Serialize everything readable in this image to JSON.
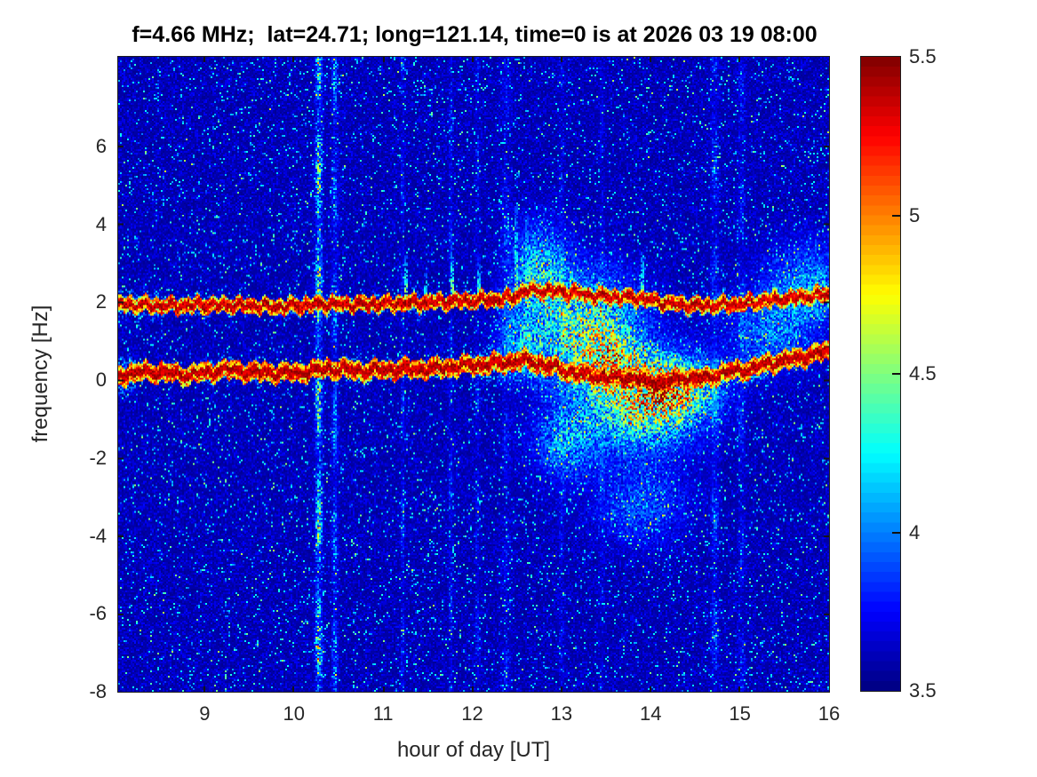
{
  "page": {
    "background": "#ffffff"
  },
  "chart_data": {
    "type": "heatmap",
    "subtype": "spectrogram",
    "title": "f=4.66 MHz;  lat=24.71; long=121.14, time=0 is at 2026 03 19 08:00",
    "xlabel": "hour of day [UT]",
    "ylabel": "frequency [Hz]",
    "xlim": [
      8.03,
      16.0
    ],
    "ylim": [
      -8,
      8.3
    ],
    "clim": [
      3.5,
      5.5
    ],
    "xticks": [
      9,
      10,
      11,
      12,
      13,
      14,
      15,
      16
    ],
    "yticks": [
      6,
      4,
      2,
      0,
      -2,
      -4,
      -6,
      -8
    ],
    "colorbar_ticks": [
      5.5,
      5,
      4.5,
      4,
      3.5
    ],
    "colormap": "jet",
    "grid": false,
    "legend": "none",
    "colors": {
      "background_low": "#000087",
      "peak_high": "#800000",
      "axis_text": "#262626",
      "title_text": "#000000",
      "axis_line": "#1c1c1c"
    },
    "features": {
      "noise": {
        "seed": 1337,
        "base": 0.06,
        "var": 0.2,
        "speckle_prob": 0.055,
        "speckle_min": 0.28,
        "speckle_var": 0.4,
        "bright_prob": 0.006,
        "bright_boost": 0.72
      },
      "upper_line": {
        "points": [
          [
            8.03,
            1.95
          ],
          [
            8.6,
            1.9
          ],
          [
            9.2,
            1.93
          ],
          [
            9.8,
            1.88
          ],
          [
            10.4,
            1.95
          ],
          [
            11.0,
            1.95
          ],
          [
            11.6,
            2.0
          ],
          [
            12.1,
            2.05
          ],
          [
            12.45,
            2.1
          ],
          [
            12.6,
            2.3
          ],
          [
            13.0,
            2.27
          ],
          [
            13.4,
            2.15
          ],
          [
            13.8,
            2.12
          ],
          [
            14.2,
            1.97
          ],
          [
            14.6,
            1.9
          ],
          [
            15.0,
            1.95
          ],
          [
            15.3,
            2.05
          ],
          [
            15.6,
            2.1
          ],
          [
            16.0,
            2.2
          ]
        ],
        "core_w": 0.09,
        "mid_w": 0.2,
        "halo_w": 0.33
      },
      "lower_line": {
        "points": [
          [
            8.03,
            0.13
          ],
          [
            8.4,
            0.22
          ],
          [
            8.8,
            0.13
          ],
          [
            9.2,
            0.26
          ],
          [
            9.6,
            0.2
          ],
          [
            10.0,
            0.18
          ],
          [
            10.4,
            0.3
          ],
          [
            10.8,
            0.23
          ],
          [
            11.2,
            0.28
          ],
          [
            11.6,
            0.3
          ],
          [
            12.0,
            0.38
          ],
          [
            12.3,
            0.42
          ],
          [
            12.55,
            0.52
          ],
          [
            12.75,
            0.42
          ],
          [
            12.95,
            0.3
          ],
          [
            13.15,
            0.18
          ],
          [
            13.35,
            0.12
          ],
          [
            13.55,
            0.05
          ],
          [
            13.75,
            0.1
          ],
          [
            13.95,
            -0.02
          ],
          [
            14.15,
            -0.08
          ],
          [
            14.35,
            0.08
          ],
          [
            14.55,
            0.02
          ],
          [
            14.75,
            0.14
          ],
          [
            14.95,
            0.24
          ],
          [
            15.15,
            0.3
          ],
          [
            15.35,
            0.45
          ],
          [
            15.55,
            0.52
          ],
          [
            15.75,
            0.62
          ],
          [
            16.0,
            0.75
          ]
        ],
        "core_w": 0.11,
        "mid_w": 0.24,
        "halo_w": 0.36
      },
      "stripes": [
        {
          "h": 10.28,
          "w": 0.035,
          "amp": 0.85
        },
        {
          "h": 10.46,
          "w": 0.03,
          "amp": 0.42
        },
        {
          "h": 11.22,
          "w": 0.02,
          "amp": 0.2
        },
        {
          "h": 11.76,
          "w": 0.02,
          "amp": 0.26
        },
        {
          "h": 12.06,
          "w": 0.025,
          "amp": 0.2
        },
        {
          "h": 12.38,
          "w": 0.05,
          "amp": 0.16
        },
        {
          "h": 13.0,
          "w": 0.03,
          "amp": 0.14
        },
        {
          "h": 13.45,
          "w": 0.03,
          "amp": 0.13
        },
        {
          "h": 14.72,
          "w": 0.04,
          "amp": 0.28
        },
        {
          "h": 15.02,
          "w": 0.035,
          "amp": 0.2
        }
      ],
      "spikes": [
        {
          "h": 11.25,
          "top": 3.2,
          "amp": 0.5
        },
        {
          "h": 11.47,
          "top": 2.75,
          "amp": 0.45
        },
        {
          "h": 11.78,
          "top": 3.4,
          "amp": 0.55
        },
        {
          "h": 12.07,
          "top": 3.0,
          "amp": 0.4
        },
        {
          "h": 12.5,
          "top": 4.5,
          "amp": 0.45
        },
        {
          "h": 12.62,
          "top": 4.2,
          "amp": 0.4
        },
        {
          "h": 13.9,
          "top": 3.3,
          "amp": 0.5
        }
      ],
      "cloud_blobs": [
        [
          13.3,
          1.3,
          0.55,
          1.3,
          0.85
        ],
        [
          13.9,
          -0.6,
          0.6,
          1.1,
          0.9
        ],
        [
          12.75,
          2.8,
          0.3,
          1.1,
          0.6
        ],
        [
          14.25,
          -0.2,
          0.45,
          0.75,
          0.85
        ],
        [
          13.55,
          0.45,
          0.35,
          0.65,
          0.6
        ],
        [
          13.05,
          -1.6,
          0.35,
          0.9,
          0.45
        ],
        [
          13.9,
          -3.2,
          0.5,
          1.0,
          0.3
        ],
        [
          15.35,
          1.2,
          0.45,
          0.9,
          0.38
        ],
        [
          15.75,
          2.5,
          0.45,
          1.0,
          0.4
        ],
        [
          12.55,
          0.9,
          0.25,
          0.8,
          0.4
        ]
      ]
    }
  }
}
